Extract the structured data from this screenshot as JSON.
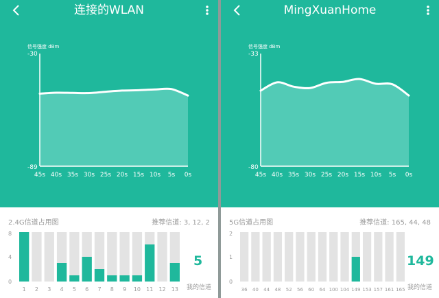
{
  "panels": [
    {
      "title": "连接的WLAN",
      "signal_label": "信号强度 dBm",
      "y_top_label": "-30",
      "y_bottom_label": "-89",
      "x_labels": [
        "45s",
        "40s",
        "35s",
        "30s",
        "25s",
        "20s",
        "15s",
        "10s",
        "5s",
        "0s"
      ],
      "channel_title": "2.4G信道占用图",
      "recommended": "推荐信道: 3, 12, 2",
      "my_channel_value": "5",
      "my_channel_label": "我的信道",
      "bar_y_ticks": [
        "8",
        "4",
        "0"
      ],
      "bar_y_max": 8,
      "channels": [
        "1",
        "2",
        "3",
        "4",
        "5",
        "6",
        "7",
        "8",
        "9",
        "10",
        "11",
        "12",
        "13"
      ],
      "bar_values": [
        8,
        0,
        0,
        3,
        1,
        4,
        2,
        1,
        1,
        1,
        6,
        0,
        3
      ]
    },
    {
      "title": "MingXuanHome",
      "signal_label": "信号强度 dBm",
      "y_top_label": "-33",
      "y_bottom_label": "-80",
      "x_labels": [
        "45s",
        "40s",
        "35s",
        "30s",
        "25s",
        "20s",
        "15s",
        "10s",
        "5s",
        "0s"
      ],
      "channel_title": "5G信道占用图",
      "recommended": "推荐信道: 165, 44, 48",
      "my_channel_value": "149",
      "my_channel_label": "我的信道",
      "bar_y_ticks": [
        "2",
        "1",
        "0"
      ],
      "bar_y_max": 2,
      "channels": [
        "36",
        "40",
        "44",
        "48",
        "52",
        "56",
        "60",
        "64",
        "100",
        "104",
        "149",
        "153",
        "157",
        "161",
        "165"
      ],
      "bar_values": [
        0,
        0,
        0,
        0,
        0,
        0,
        0,
        0,
        0,
        0,
        1,
        0,
        0,
        0,
        0
      ]
    }
  ],
  "colors": {
    "accent": "#1fb89c",
    "bar_empty": "#e3e3e3",
    "fill": "#52cbb6"
  },
  "chart_data": [
    {
      "type": "area",
      "title": "连接的WLAN",
      "ylabel": "信号强度 dBm",
      "x": [
        "45s",
        "40s",
        "35s",
        "30s",
        "25s",
        "20s",
        "15s",
        "10s",
        "5s",
        "0s"
      ],
      "ylim": [
        -89,
        -30
      ],
      "series": [
        {
          "values": [
            -51,
            -50.5,
            -50.6,
            -50.7,
            -50,
            -49.4,
            -49.2,
            -48.8,
            -48.6,
            -52
          ]
        }
      ]
    },
    {
      "type": "area",
      "title": "MingXuanHome",
      "ylabel": "信号强度 dBm",
      "x": [
        "45s",
        "40s",
        "35s",
        "30s",
        "25s",
        "20s",
        "15s",
        "10s",
        "5s",
        "0s"
      ],
      "ylim": [
        -80,
        -33
      ],
      "series": [
        {
          "values": [
            -48.5,
            -45,
            -46.8,
            -47.4,
            -45.2,
            -44.8,
            -43.6,
            -45.6,
            -45.8,
            -50.5
          ]
        }
      ]
    },
    {
      "type": "bar",
      "title": "2.4G信道占用图",
      "categories": [
        "1",
        "2",
        "3",
        "4",
        "5",
        "6",
        "7",
        "8",
        "9",
        "10",
        "11",
        "12",
        "13"
      ],
      "values": [
        8,
        0,
        0,
        3,
        1,
        4,
        2,
        1,
        1,
        1,
        6,
        0,
        3
      ],
      "ylim": [
        0,
        8
      ]
    },
    {
      "type": "bar",
      "title": "5G信道占用图",
      "categories": [
        "36",
        "40",
        "44",
        "48",
        "52",
        "56",
        "60",
        "64",
        "100",
        "104",
        "149",
        "153",
        "157",
        "161",
        "165"
      ],
      "values": [
        0,
        0,
        0,
        0,
        0,
        0,
        0,
        0,
        0,
        0,
        1,
        0,
        0,
        0,
        0
      ],
      "ylim": [
        0,
        2
      ]
    }
  ]
}
